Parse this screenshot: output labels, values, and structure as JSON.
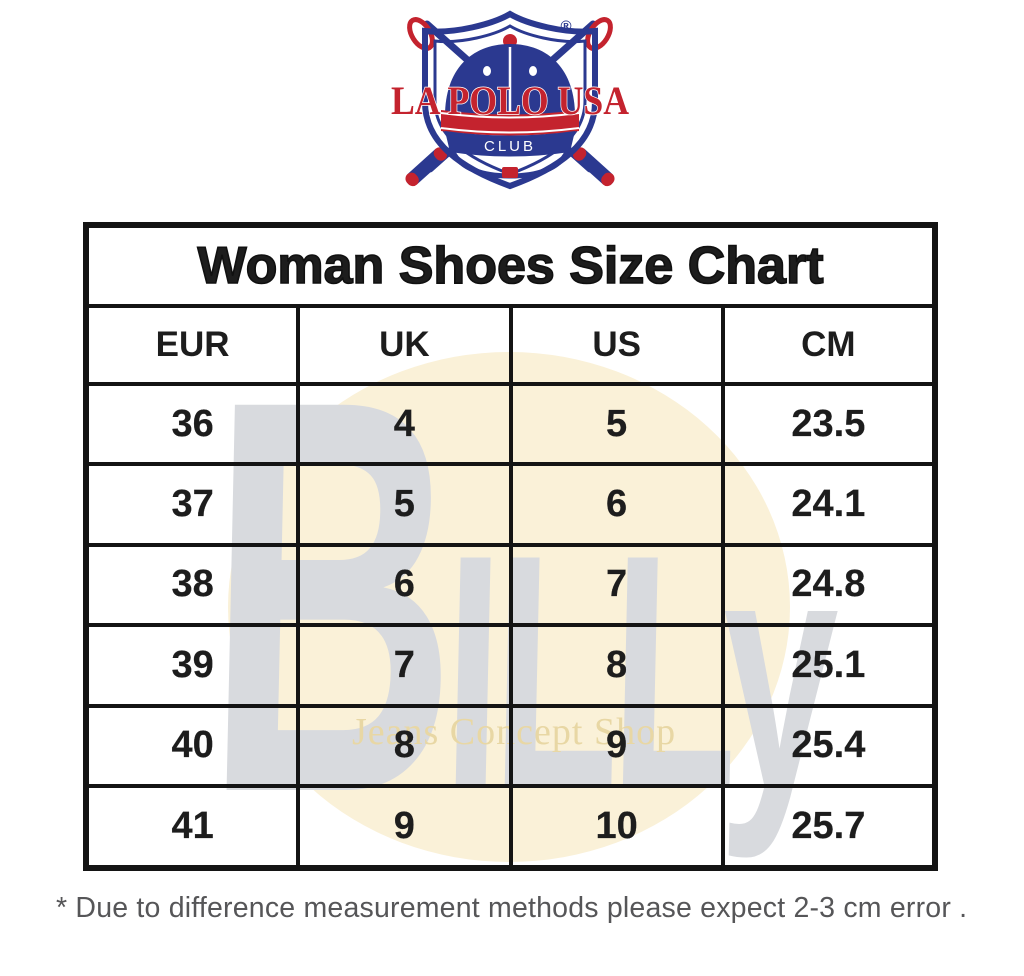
{
  "logo": {
    "brand": "LA POLO USA",
    "club": "CLUB",
    "registered": "®"
  },
  "watermark": {
    "billy_b": "B",
    "billy_rest": "ILLy",
    "shop_text": "Jeans Concept Shop"
  },
  "table": {
    "title": "Woman Shoes Size Chart",
    "headers": [
      "EUR",
      "UK",
      "US",
      "CM"
    ],
    "rows": [
      [
        "36",
        "4",
        "5",
        "23.5"
      ],
      [
        "37",
        "5",
        "6",
        "24.1"
      ],
      [
        "38",
        "6",
        "7",
        "24.8"
      ],
      [
        "39",
        "7",
        "8",
        "25.1"
      ],
      [
        "40",
        "8",
        "9",
        "25.4"
      ],
      [
        "41",
        "9",
        "10",
        "25.7"
      ]
    ]
  },
  "footnote": "* Due to difference measurement methods please expect 2-3 cm error .",
  "colors": {
    "logo_blue": "#2b3990",
    "logo_red": "#c4232e",
    "table_line": "#141414",
    "watermark_gray": "#d8dade",
    "watermark_cream": "#faf1d8",
    "watermark_gold": "#e8d7a4",
    "footnote_gray": "#565658"
  }
}
